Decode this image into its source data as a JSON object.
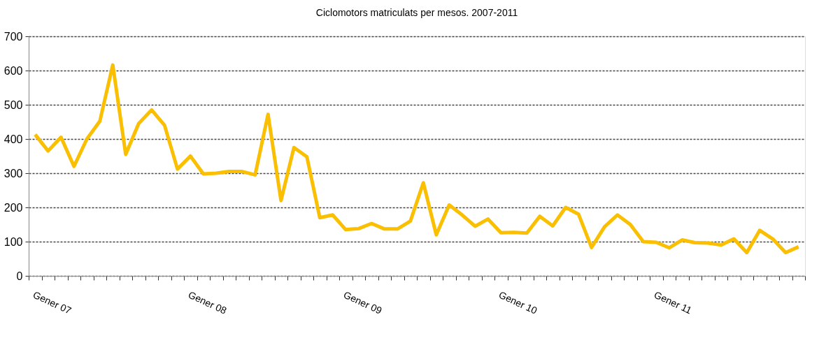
{
  "chart_data": {
    "type": "line",
    "title": "Ciclomotors matriculats per mesos. 2007-2011",
    "categories": [
      "Gener 07",
      null,
      null,
      null,
      null,
      null,
      null,
      null,
      null,
      null,
      null,
      null,
      "Gener 08",
      null,
      null,
      null,
      null,
      null,
      null,
      null,
      null,
      null,
      null,
      null,
      "Gener 09",
      null,
      null,
      null,
      null,
      null,
      null,
      null,
      null,
      null,
      null,
      null,
      "Gener 10",
      null,
      null,
      null,
      null,
      null,
      null,
      null,
      null,
      null,
      null,
      null,
      "Gener 11",
      null,
      null,
      null,
      null,
      null,
      null,
      null,
      null,
      null,
      null,
      null
    ],
    "series": [
      {
        "color": "#f9bf00",
        "values": [
          413,
          365,
          405,
          320,
          400,
          452,
          616,
          355,
          445,
          485,
          440,
          312,
          350,
          298,
          300,
          305,
          305,
          295,
          472,
          220,
          375,
          348,
          170,
          178,
          135,
          138,
          153,
          137,
          137,
          160,
          272,
          120,
          207,
          178,
          145,
          166,
          126,
          127,
          125,
          174,
          146,
          200,
          180,
          83,
          143,
          178,
          150,
          100,
          98,
          82,
          105,
          97,
          96,
          90,
          108,
          68,
          133,
          108,
          68,
          85
        ]
      }
    ],
    "ylim": [
      0,
      700
    ],
    "yticks": [
      0,
      100,
      200,
      300,
      400,
      500,
      600,
      700
    ],
    "grid": "y",
    "line_style": "solid",
    "marker": "none"
  }
}
